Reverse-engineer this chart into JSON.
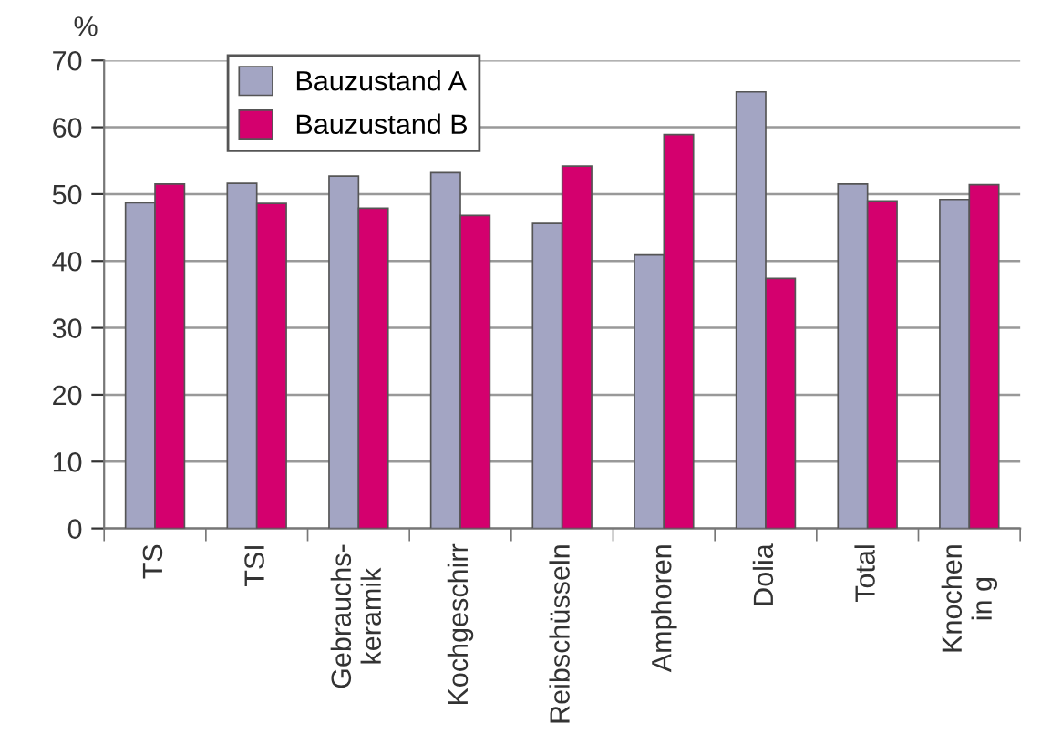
{
  "chart_data": {
    "type": "bar",
    "ylabel": "%",
    "categories": [
      "TS",
      "TSI",
      "Gebrauchs-\nkeramik",
      "Kochgeschirr",
      "Reibschüsseln",
      "Amphoren",
      "Dolia",
      "Total",
      "Knochen\nin g"
    ],
    "series": [
      {
        "name": "Bauzustand A",
        "color": "#a3a5c3",
        "values": [
          48.7,
          51.6,
          52.7,
          53.2,
          45.6,
          40.9,
          65.3,
          51.5,
          49.2
        ]
      },
      {
        "name": "Bauzustand B",
        "color": "#d4006e",
        "values": [
          51.5,
          48.6,
          47.9,
          46.8,
          54.2,
          58.9,
          37.4,
          49.0,
          51.4
        ]
      }
    ],
    "ylim": [
      0,
      70
    ],
    "yticks": [
      0,
      10,
      20,
      30,
      40,
      50,
      60,
      70
    ],
    "grid": "y",
    "legend": "top left"
  }
}
